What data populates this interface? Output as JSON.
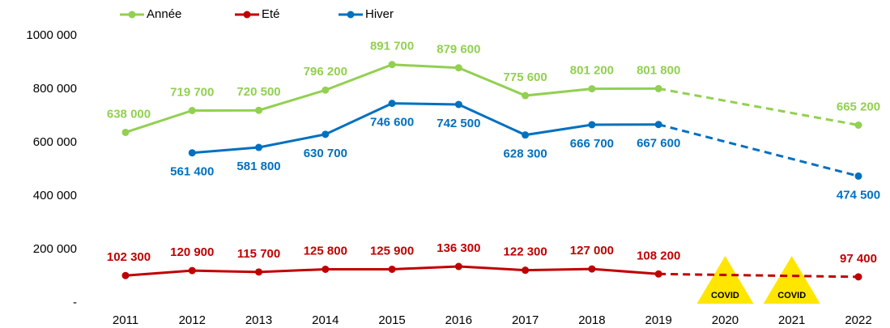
{
  "chart_data": {
    "type": "line",
    "categories": [
      "2011",
      "2012",
      "2013",
      "2014",
      "2015",
      "2016",
      "2017",
      "2018",
      "2019",
      "2020",
      "2021",
      "2022"
    ],
    "series": [
      {
        "name": "Année",
        "color": "#92d050",
        "values": [
          638000,
          719700,
          720500,
          796200,
          891700,
          879600,
          775600,
          801200,
          801800,
          null,
          null,
          665200
        ],
        "value_labels": [
          "638 000",
          "719 700",
          "720 500",
          "796 200",
          "891 700",
          "879 600",
          "775 600",
          "801 200",
          "801 800",
          null,
          null,
          "665 200"
        ]
      },
      {
        "name": "Eté",
        "color": "#c00000",
        "values": [
          102300,
          120900,
          115700,
          125800,
          125900,
          136300,
          122300,
          127000,
          108200,
          null,
          null,
          97400
        ],
        "value_labels": [
          "102 300",
          "120 900",
          "115 700",
          "125 800",
          "125 900",
          "136 300",
          "122 300",
          "127 000",
          "108 200",
          null,
          null,
          "97 400"
        ]
      },
      {
        "name": "Hiver",
        "color": "#0070c0",
        "values": [
          null,
          561400,
          581800,
          630700,
          746600,
          742500,
          628300,
          666700,
          667600,
          null,
          null,
          474500
        ],
        "value_labels": [
          null,
          "561 400",
          "581 800",
          "630 700",
          "746 600",
          "742 500",
          "628 300",
          "666 700",
          "667 600",
          null,
          null,
          "474 500"
        ]
      }
    ],
    "ylim": [
      0,
      1000000
    ],
    "yticks": [
      {
        "value": 0,
        "label": "-"
      },
      {
        "value": 200000,
        "label": "200 000"
      },
      {
        "value": 400000,
        "label": "400 000"
      },
      {
        "value": 600000,
        "label": "600 000"
      },
      {
        "value": 800000,
        "label": "800 000"
      },
      {
        "value": 1000000,
        "label": "1000 000"
      }
    ],
    "gap_style": "dashed",
    "legend": "top-left",
    "annotations": [
      {
        "text": "COVID",
        "at": "2020"
      },
      {
        "text": "COVID",
        "at": "2021"
      }
    ]
  }
}
